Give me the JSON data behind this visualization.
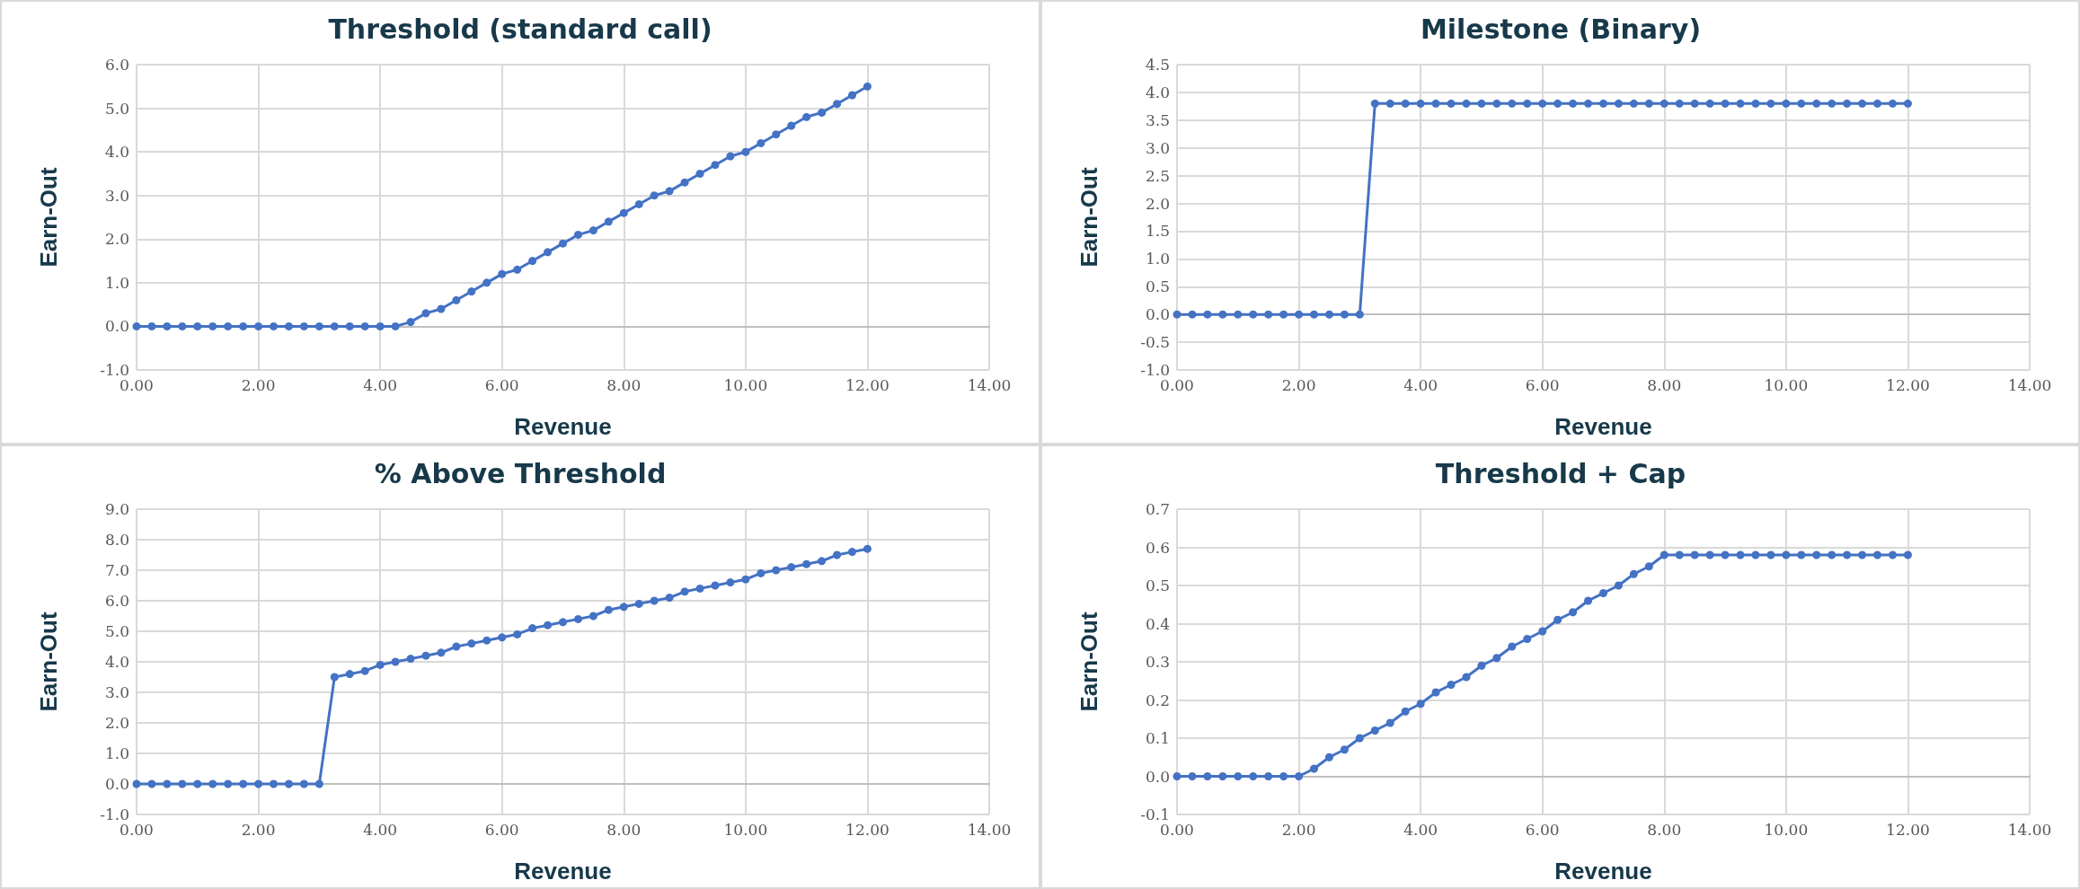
{
  "chart_data": [
    {
      "type": "line",
      "title": "Threshold (standard call)",
      "xlabel": "Revenue",
      "ylabel": "Earn-Out",
      "color": "#4472c4",
      "marker": "circle",
      "grid": true,
      "x": [
        0,
        0.25,
        0.5,
        0.75,
        1,
        1.25,
        1.5,
        1.75,
        2,
        2.25,
        2.5,
        2.75,
        3,
        3.25,
        3.5,
        3.75,
        4,
        4.25,
        4.5,
        4.75,
        5,
        5.25,
        5.5,
        5.75,
        6,
        6.25,
        6.5,
        6.75,
        7,
        7.25,
        7.5,
        7.75,
        8,
        8.25,
        8.5,
        8.75,
        9,
        9.25,
        9.5,
        9.75,
        10,
        10.25,
        10.5,
        10.75,
        11,
        11.25,
        11.5,
        11.75,
        12
      ],
      "values": [
        0,
        0,
        0,
        0,
        0,
        0,
        0,
        0,
        0,
        0,
        0,
        0,
        0,
        0,
        0,
        0,
        0,
        0,
        0.1,
        0.3,
        0.4,
        0.6,
        0.8,
        1.0,
        1.2,
        1.3,
        1.5,
        1.7,
        1.9,
        2.1,
        2.2,
        2.4,
        2.6,
        2.8,
        3.0,
        3.1,
        3.3,
        3.5,
        3.7,
        3.9,
        4.0,
        4.2,
        4.4,
        4.6,
        4.8,
        4.9,
        5.1,
        5.3,
        5.5
      ],
      "xlim": [
        0,
        14
      ],
      "xticks": [
        {
          "value": 0,
          "label": "0.00"
        },
        {
          "value": 2,
          "label": "2.00"
        },
        {
          "value": 4,
          "label": "4.00"
        },
        {
          "value": 6,
          "label": "6.00"
        },
        {
          "value": 8,
          "label": "8.00"
        },
        {
          "value": 10,
          "label": "10.00"
        },
        {
          "value": 12,
          "label": "12.00"
        },
        {
          "value": 14,
          "label": "14.00"
        }
      ],
      "ylim": [
        -1,
        6
      ],
      "yticks": [
        {
          "value": -1,
          "label": "-1.0"
        },
        {
          "value": 0,
          "label": "0.0"
        },
        {
          "value": 1,
          "label": "1.0"
        },
        {
          "value": 2,
          "label": "2.0"
        },
        {
          "value": 3,
          "label": "3.0"
        },
        {
          "value": 4,
          "label": "4.0"
        },
        {
          "value": 5,
          "label": "5.0"
        },
        {
          "value": 6,
          "label": "6.0"
        }
      ]
    },
    {
      "type": "line",
      "title": "Milestone (Binary)",
      "xlabel": "Revenue",
      "ylabel": "Earn-Out",
      "color": "#4472c4",
      "marker": "circle",
      "grid": true,
      "x": [
        0,
        0.25,
        0.5,
        0.75,
        1,
        1.25,
        1.5,
        1.75,
        2,
        2.25,
        2.5,
        2.75,
        3,
        3.25,
        3.5,
        3.75,
        4,
        4.25,
        4.5,
        4.75,
        5,
        5.25,
        5.5,
        5.75,
        6,
        6.25,
        6.5,
        6.75,
        7,
        7.25,
        7.5,
        7.75,
        8,
        8.25,
        8.5,
        8.75,
        9,
        9.25,
        9.5,
        9.75,
        10,
        10.25,
        10.5,
        10.75,
        11,
        11.25,
        11.5,
        11.75,
        12
      ],
      "values": [
        0,
        0,
        0,
        0,
        0,
        0,
        0,
        0,
        0,
        0,
        0,
        0,
        0,
        3.8,
        3.8,
        3.8,
        3.8,
        3.8,
        3.8,
        3.8,
        3.8,
        3.8,
        3.8,
        3.8,
        3.8,
        3.8,
        3.8,
        3.8,
        3.8,
        3.8,
        3.8,
        3.8,
        3.8,
        3.8,
        3.8,
        3.8,
        3.8,
        3.8,
        3.8,
        3.8,
        3.8,
        3.8,
        3.8,
        3.8,
        3.8,
        3.8,
        3.8,
        3.8,
        3.8
      ],
      "xlim": [
        0,
        14
      ],
      "xticks": [
        {
          "value": 0,
          "label": "0.00"
        },
        {
          "value": 2,
          "label": "2.00"
        },
        {
          "value": 4,
          "label": "4.00"
        },
        {
          "value": 6,
          "label": "6.00"
        },
        {
          "value": 8,
          "label": "8.00"
        },
        {
          "value": 10,
          "label": "10.00"
        },
        {
          "value": 12,
          "label": "12.00"
        },
        {
          "value": 14,
          "label": "14.00"
        }
      ],
      "ylim": [
        -1,
        4.5
      ],
      "yticks": [
        {
          "value": -1,
          "label": "-1.0"
        },
        {
          "value": -0.5,
          "label": "-0.5"
        },
        {
          "value": 0,
          "label": "0.0"
        },
        {
          "value": 0.5,
          "label": "0.5"
        },
        {
          "value": 1,
          "label": "1.0"
        },
        {
          "value": 1.5,
          "label": "1.5"
        },
        {
          "value": 2,
          "label": "2.0"
        },
        {
          "value": 2.5,
          "label": "2.5"
        },
        {
          "value": 3,
          "label": "3.0"
        },
        {
          "value": 3.5,
          "label": "3.5"
        },
        {
          "value": 4,
          "label": "4.0"
        },
        {
          "value": 4.5,
          "label": "4.5"
        }
      ]
    },
    {
      "type": "line",
      "title": "% Above Threshold",
      "xlabel": "Revenue",
      "ylabel": "Earn-Out",
      "color": "#4472c4",
      "marker": "circle",
      "grid": true,
      "x": [
        0,
        0.25,
        0.5,
        0.75,
        1,
        1.25,
        1.5,
        1.75,
        2,
        2.25,
        2.5,
        2.75,
        3,
        3.25,
        3.5,
        3.75,
        4,
        4.25,
        4.5,
        4.75,
        5,
        5.25,
        5.5,
        5.75,
        6,
        6.25,
        6.5,
        6.75,
        7,
        7.25,
        7.5,
        7.75,
        8,
        8.25,
        8.5,
        8.75,
        9,
        9.25,
        9.5,
        9.75,
        10,
        10.25,
        10.5,
        10.75,
        11,
        11.25,
        11.5,
        11.75,
        12
      ],
      "values": [
        0,
        0,
        0,
        0,
        0,
        0,
        0,
        0,
        0,
        0,
        0,
        0,
        0,
        3.5,
        3.6,
        3.7,
        3.9,
        4.0,
        4.1,
        4.2,
        4.3,
        4.5,
        4.6,
        4.7,
        4.8,
        4.9,
        5.1,
        5.2,
        5.3,
        5.4,
        5.5,
        5.7,
        5.8,
        5.9,
        6.0,
        6.1,
        6.3,
        6.4,
        6.5,
        6.6,
        6.7,
        6.9,
        7.0,
        7.1,
        7.2,
        7.3,
        7.5,
        7.6,
        7.7
      ],
      "xlim": [
        0,
        14
      ],
      "xticks": [
        {
          "value": 0,
          "label": "0.00"
        },
        {
          "value": 2,
          "label": "2.00"
        },
        {
          "value": 4,
          "label": "4.00"
        },
        {
          "value": 6,
          "label": "6.00"
        },
        {
          "value": 8,
          "label": "8.00"
        },
        {
          "value": 10,
          "label": "10.00"
        },
        {
          "value": 12,
          "label": "12.00"
        },
        {
          "value": 14,
          "label": "14.00"
        }
      ],
      "ylim": [
        -1,
        9
      ],
      "yticks": [
        {
          "value": -1,
          "label": "-1.0"
        },
        {
          "value": 0,
          "label": "0.0"
        },
        {
          "value": 1,
          "label": "1.0"
        },
        {
          "value": 2,
          "label": "2.0"
        },
        {
          "value": 3,
          "label": "3.0"
        },
        {
          "value": 4,
          "label": "4.0"
        },
        {
          "value": 5,
          "label": "5.0"
        },
        {
          "value": 6,
          "label": "6.0"
        },
        {
          "value": 7,
          "label": "7.0"
        },
        {
          "value": 8,
          "label": "8.0"
        },
        {
          "value": 9,
          "label": "9.0"
        }
      ]
    },
    {
      "type": "line",
      "title": "Threshold + Cap",
      "xlabel": "Revenue",
      "ylabel": "Earn-Out",
      "color": "#4472c4",
      "marker": "circle",
      "grid": true,
      "x": [
        0,
        0.25,
        0.5,
        0.75,
        1,
        1.25,
        1.5,
        1.75,
        2,
        2.25,
        2.5,
        2.75,
        3,
        3.25,
        3.5,
        3.75,
        4,
        4.25,
        4.5,
        4.75,
        5,
        5.25,
        5.5,
        5.75,
        6,
        6.25,
        6.5,
        6.75,
        7,
        7.25,
        7.5,
        7.75,
        8,
        8.25,
        8.5,
        8.75,
        9,
        9.25,
        9.5,
        9.75,
        10,
        10.25,
        10.5,
        10.75,
        11,
        11.25,
        11.5,
        11.75,
        12
      ],
      "values": [
        0,
        0,
        0,
        0,
        0,
        0,
        0,
        0,
        0,
        0.02,
        0.05,
        0.07,
        0.1,
        0.12,
        0.14,
        0.17,
        0.19,
        0.22,
        0.24,
        0.26,
        0.29,
        0.31,
        0.34,
        0.36,
        0.38,
        0.41,
        0.43,
        0.46,
        0.48,
        0.5,
        0.53,
        0.55,
        0.58,
        0.58,
        0.58,
        0.58,
        0.58,
        0.58,
        0.58,
        0.58,
        0.58,
        0.58,
        0.58,
        0.58,
        0.58,
        0.58,
        0.58,
        0.58,
        0.58
      ],
      "xlim": [
        0,
        14
      ],
      "xticks": [
        {
          "value": 0,
          "label": "0.00"
        },
        {
          "value": 2,
          "label": "2.00"
        },
        {
          "value": 4,
          "label": "4.00"
        },
        {
          "value": 6,
          "label": "6.00"
        },
        {
          "value": 8,
          "label": "8.00"
        },
        {
          "value": 10,
          "label": "10.00"
        },
        {
          "value": 12,
          "label": "12.00"
        },
        {
          "value": 14,
          "label": "14.00"
        }
      ],
      "ylim": [
        -0.1,
        0.7
      ],
      "yticks": [
        {
          "value": -0.1,
          "label": "-0.1"
        },
        {
          "value": 0,
          "label": "0.0"
        },
        {
          "value": 0.1,
          "label": "0.1"
        },
        {
          "value": 0.2,
          "label": "0.2"
        },
        {
          "value": 0.3,
          "label": "0.3"
        },
        {
          "value": 0.4,
          "label": "0.4"
        },
        {
          "value": 0.5,
          "label": "0.5"
        },
        {
          "value": 0.6,
          "label": "0.6"
        },
        {
          "value": 0.7,
          "label": "0.7"
        }
      ]
    }
  ]
}
